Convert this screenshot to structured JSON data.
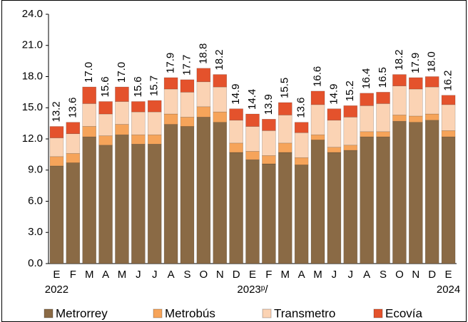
{
  "chart_data": {
    "type": "stacked_bar",
    "categories": [
      "E",
      "F",
      "M",
      "A",
      "M",
      "J",
      "J",
      "A",
      "S",
      "O",
      "N",
      "D",
      "E",
      "F",
      "M",
      "A",
      "M",
      "J",
      "J",
      "A",
      "S",
      "O",
      "N",
      "D",
      "E"
    ],
    "years": [
      "2022",
      null,
      null,
      null,
      null,
      null,
      null,
      null,
      null,
      null,
      null,
      null,
      "2023ᵖ/",
      null,
      null,
      null,
      null,
      null,
      null,
      null,
      null,
      null,
      null,
      null,
      "2024"
    ],
    "series": [
      {
        "name": "Metrorrey",
        "color": "#8a6a45",
        "values": [
          9.4,
          9.7,
          12.2,
          11.4,
          12.4,
          11.5,
          11.5,
          13.4,
          13.2,
          14.1,
          13.6,
          10.7,
          10.0,
          9.6,
          10.7,
          9.5,
          11.9,
          10.7,
          10.9,
          12.2,
          12.2,
          13.7,
          13.6,
          13.8,
          12.2
        ]
      },
      {
        "name": "Metrobús",
        "color": "#f6a45a",
        "values": [
          0.9,
          0.9,
          1.0,
          0.9,
          1.0,
          0.9,
          0.9,
          1.0,
          0.9,
          1.0,
          1.0,
          0.9,
          0.8,
          0.8,
          0.9,
          0.7,
          0.5,
          0.5,
          0.5,
          0.5,
          0.5,
          0.6,
          0.6,
          0.6,
          0.6
        ]
      },
      {
        "name": "Transmetro",
        "color": "#fbd3b4",
        "values": [
          1.8,
          1.9,
          2.2,
          2.1,
          2.2,
          2.2,
          2.2,
          2.4,
          2.4,
          2.4,
          2.4,
          2.2,
          2.4,
          2.4,
          2.7,
          2.4,
          2.9,
          2.6,
          2.7,
          2.5,
          2.7,
          2.8,
          2.6,
          2.6,
          2.5
        ]
      },
      {
        "name": "Ecovía",
        "color": "#e4522c",
        "values": [
          1.1,
          1.1,
          1.6,
          1.2,
          1.4,
          1.0,
          1.1,
          1.1,
          1.2,
          1.3,
          1.2,
          1.1,
          1.2,
          1.1,
          1.2,
          1.0,
          1.3,
          1.1,
          1.1,
          1.2,
          1.1,
          1.1,
          1.1,
          1.0,
          0.9
        ]
      }
    ],
    "totals": [
      13.2,
      13.6,
      17.0,
      15.6,
      17.0,
      15.6,
      15.7,
      17.9,
      17.7,
      18.8,
      18.2,
      14.9,
      14.4,
      13.9,
      15.5,
      13.6,
      16.6,
      14.9,
      15.2,
      16.4,
      16.5,
      18.2,
      17.9,
      18.0,
      16.2
    ],
    "total_labels": [
      "13.2",
      "13.6",
      "17.0",
      "15.6",
      "17.0",
      "15.6",
      "15.7",
      "17.9",
      "17.7",
      "18.8",
      "18.2",
      "14.9",
      "14.4",
      "13.9",
      "15.5",
      "13.6",
      "16.6",
      "14.9",
      "15.2",
      "16.4",
      "16.5",
      "18.2",
      "17.9",
      "18.0",
      "16.2"
    ],
    "ylim": [
      0,
      24
    ],
    "yticks": [
      {
        "value": 0,
        "label": "0.0"
      },
      {
        "value": 3,
        "label": "3.0"
      },
      {
        "value": 6,
        "label": "6.0"
      },
      {
        "value": 9,
        "label": "9.0"
      },
      {
        "value": 12,
        "label": "12.0"
      },
      {
        "value": 15,
        "label": "15.0"
      },
      {
        "value": 18,
        "label": "18.0"
      },
      {
        "value": 21,
        "label": "21.0"
      },
      {
        "value": 24,
        "label": "24.0"
      }
    ]
  }
}
